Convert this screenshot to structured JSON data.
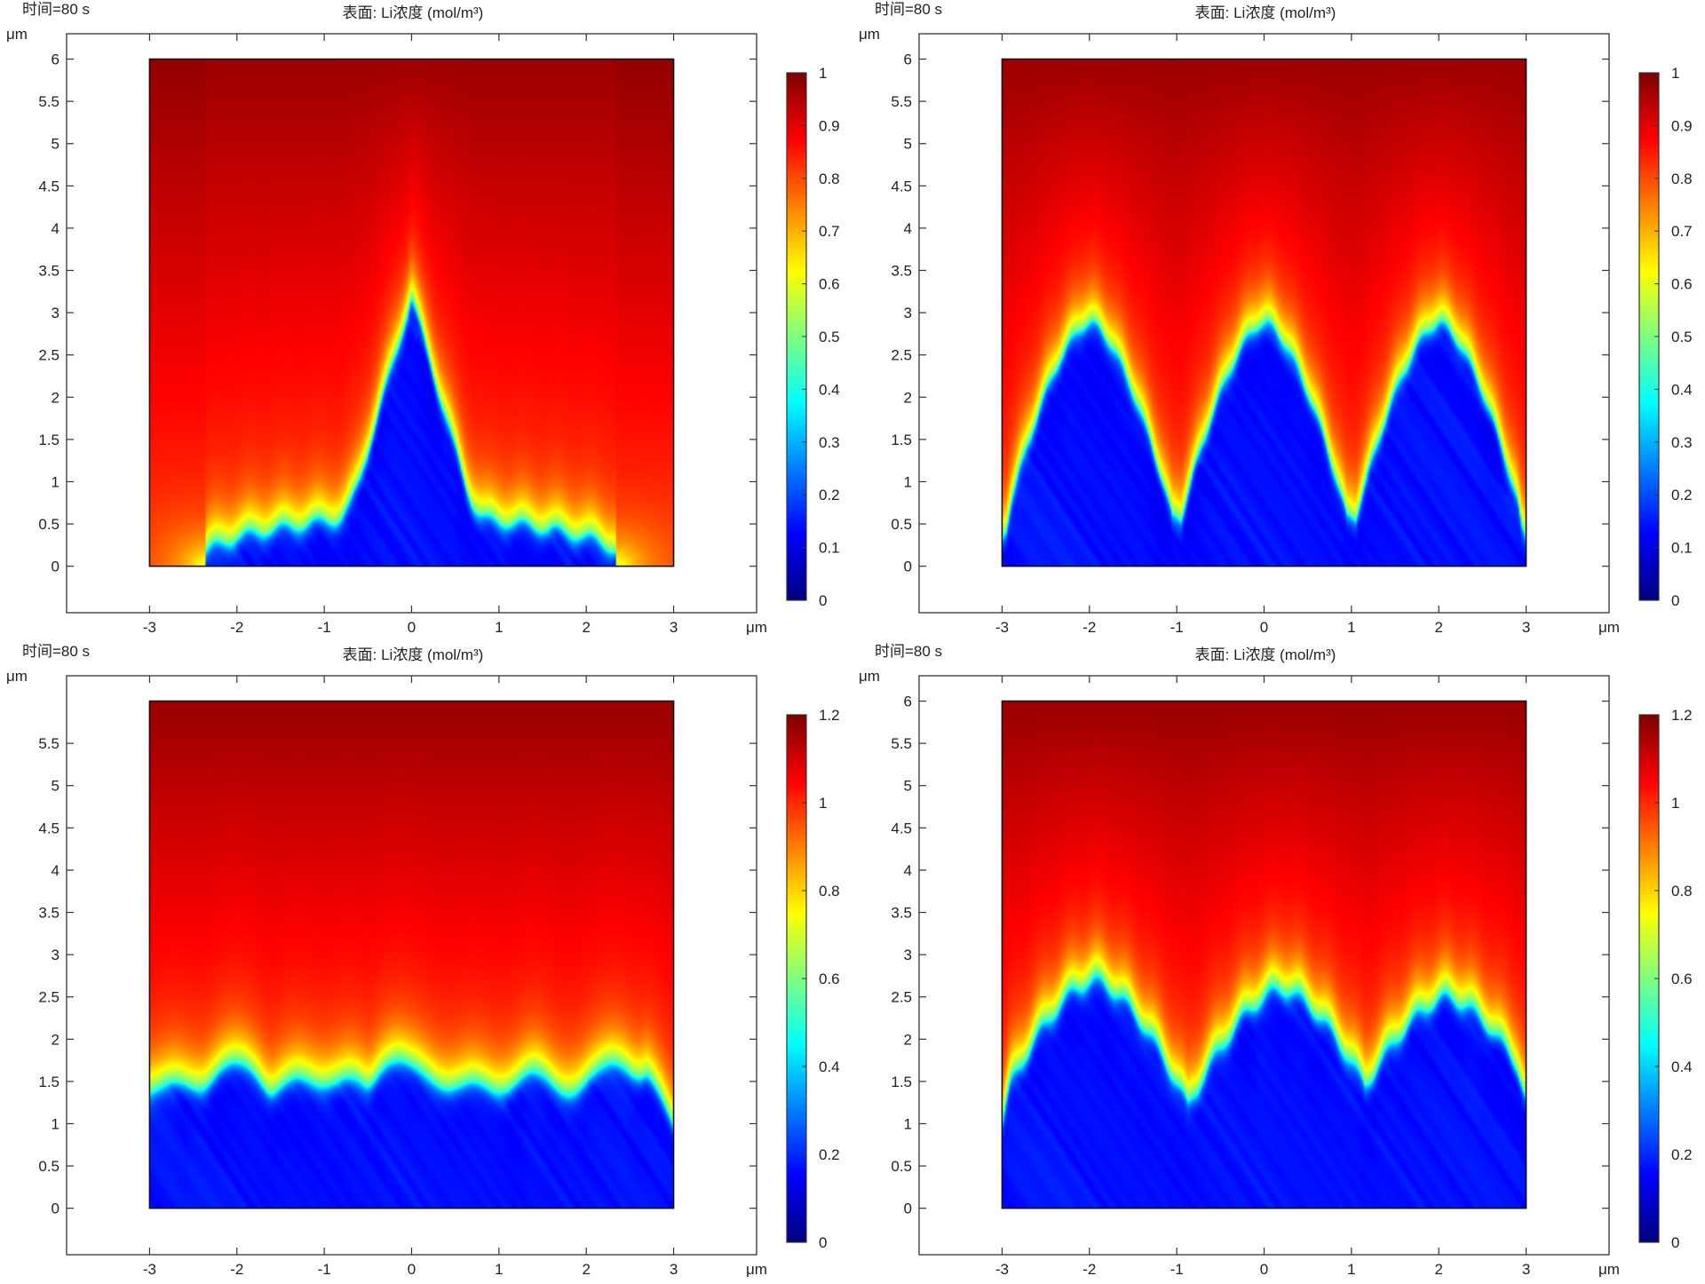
{
  "chart_data": [
    {
      "type": "heatmap",
      "time_label": "时间=80 s",
      "title": "表面: Li浓度 (mol/m³)",
      "x_unit": "μm",
      "y_unit": "μm",
      "x_ticks": [
        -3,
        -2,
        -1,
        0,
        1,
        2,
        3
      ],
      "y_ticks": [
        0,
        0.5,
        1,
        1.5,
        2,
        2.5,
        3,
        3.5,
        4,
        4.5,
        5,
        5.5,
        6
      ],
      "xlim": [
        -3.95,
        3.95
      ],
      "ylim": [
        -0.55,
        6.3
      ],
      "domain": {
        "x": [
          -3,
          3
        ],
        "y": [
          0,
          6
        ]
      },
      "colorbar": {
        "min": 0,
        "max": 1,
        "ticks": [
          0,
          0.1,
          0.2,
          0.3,
          0.4,
          0.5,
          0.6,
          0.7,
          0.8,
          0.9,
          1
        ]
      },
      "colormap": [
        "#00007f",
        "#0000ff",
        "#007fff",
        "#00ffff",
        "#7fff7f",
        "#ffff00",
        "#ff7f00",
        "#ff0000",
        "#7f0000"
      ],
      "deposit": {
        "kind": "single-dendrite",
        "peaks": [
          {
            "x": 0,
            "height": 3.2
          }
        ],
        "base_halfwidth": 2.35,
        "base_height": 0.35
      },
      "concentration": {
        "dendrite": 0.12,
        "near_interface": 0.82,
        "top": 0.98
      }
    },
    {
      "type": "heatmap",
      "time_label": "时间=80 s",
      "title": "表面: Li浓度 (mol/m³)",
      "x_unit": "μm",
      "y_unit": "μm",
      "x_ticks": [
        -3,
        -2,
        -1,
        0,
        1,
        2,
        3
      ],
      "y_ticks": [
        0,
        0.5,
        1,
        1.5,
        2,
        2.5,
        3,
        3.5,
        4,
        4.5,
        5,
        5.5,
        6
      ],
      "xlim": [
        -3.95,
        3.95
      ],
      "ylim": [
        -0.55,
        6.3
      ],
      "domain": {
        "x": [
          -3,
          3
        ],
        "y": [
          0,
          6
        ]
      },
      "colorbar": {
        "min": 0,
        "max": 1,
        "ticks": [
          0,
          0.1,
          0.2,
          0.3,
          0.4,
          0.5,
          0.6,
          0.7,
          0.8,
          0.9,
          1
        ]
      },
      "colormap": [
        "#00007f",
        "#0000ff",
        "#007fff",
        "#00ffff",
        "#7fff7f",
        "#ffff00",
        "#ff7f00",
        "#ff0000",
        "#7f0000"
      ],
      "deposit": {
        "kind": "three-dendrites",
        "peaks": [
          {
            "x": -2,
            "height": 2.9
          },
          {
            "x": 0,
            "height": 2.9
          },
          {
            "x": 2,
            "height": 2.9
          }
        ],
        "valley_height": 0.6
      },
      "concentration": {
        "dendrite": 0.12,
        "near_interface": 0.82,
        "top": 0.98
      }
    },
    {
      "type": "heatmap",
      "time_label": "时间=80 s",
      "title": "表面: Li浓度 (mol/m³)",
      "x_unit": "μm",
      "y_unit": "μm",
      "x_ticks": [
        -3,
        -2,
        -1,
        0,
        1,
        2,
        3
      ],
      "y_ticks": [
        0,
        0.5,
        1,
        1.5,
        2,
        2.5,
        3,
        3.5,
        4,
        4.5,
        5,
        5.5
      ],
      "xlim": [
        -3.95,
        3.95
      ],
      "ylim": [
        -0.55,
        6.3
      ],
      "domain": {
        "x": [
          -3,
          3
        ],
        "y": [
          0,
          6
        ]
      },
      "colorbar": {
        "min": 0,
        "max": 1.2,
        "ticks": [
          0,
          0.2,
          0.4,
          0.6,
          0.8,
          1,
          1.2
        ]
      },
      "colormap": [
        "#00007f",
        "#0000ff",
        "#007fff",
        "#00ffff",
        "#7fff7f",
        "#ffff00",
        "#ff7f00",
        "#ff0000",
        "#7f0000"
      ],
      "deposit": {
        "kind": "flat-front",
        "peaks": [
          {
            "x": -2.0,
            "height": 1.72
          },
          {
            "x": -0.15,
            "height": 1.75
          },
          {
            "x": 2.3,
            "height": 1.72
          }
        ],
        "mean_height": 1.55
      },
      "concentration": {
        "dendrite": 0.15,
        "near_interface": 0.98,
        "top": 1.18
      }
    },
    {
      "type": "heatmap",
      "time_label": "时间=80 s",
      "title": "表面: Li浓度 (mol/m³)",
      "x_unit": "μm",
      "y_unit": "μm",
      "x_ticks": [
        -3,
        -2,
        -1,
        0,
        1,
        2,
        3
      ],
      "y_ticks": [
        0,
        0.5,
        1,
        1.5,
        2,
        2.5,
        3,
        3.5,
        4,
        4.5,
        5,
        5.5,
        6
      ],
      "xlim": [
        -3.95,
        3.95
      ],
      "ylim": [
        -0.55,
        6.3
      ],
      "domain": {
        "x": [
          -3,
          3
        ],
        "y": [
          0,
          6
        ]
      },
      "colorbar": {
        "min": 0,
        "max": 1.2,
        "ticks": [
          0,
          0.2,
          0.4,
          0.6,
          0.8,
          1,
          1.2
        ]
      },
      "colormap": [
        "#00007f",
        "#0000ff",
        "#007fff",
        "#00ffff",
        "#7fff7f",
        "#ffff00",
        "#ff7f00",
        "#ff0000",
        "#7f0000"
      ],
      "deposit": {
        "kind": "three-branched-dendrites",
        "peaks": [
          {
            "x": -1.95,
            "height": 2.7
          },
          {
            "x": 0.2,
            "height": 2.6
          },
          {
            "x": 2.1,
            "height": 2.5
          }
        ],
        "valley_height": 1.05
      },
      "concentration": {
        "dendrite": 0.15,
        "near_interface": 0.98,
        "top": 1.18
      }
    }
  ]
}
